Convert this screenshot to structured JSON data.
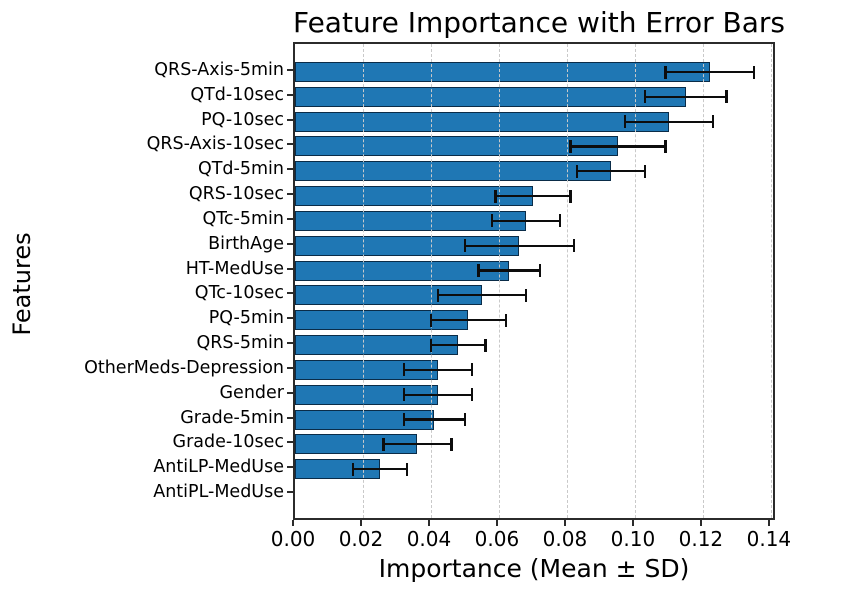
{
  "chart_data": {
    "type": "bar",
    "orientation": "horizontal",
    "title": "Feature Importance with Error Bars",
    "xlabel": "Importance (Mean ± SD)",
    "ylabel": "Features",
    "categories": [
      "QRS-Axis-5min",
      "QTd-10sec",
      "PQ-10sec",
      "QRS-Axis-10sec",
      "QTd-5min",
      "QRS-10sec",
      "QTc-5min",
      "BirthAge",
      "HT-MedUse",
      "QTc-10sec",
      "PQ-5min",
      "QRS-5min",
      "OtherMeds-Depression",
      "Gender",
      "Grade-5min",
      "Grade-10sec",
      "AntiLP-MedUse",
      "AntiPL-MedUse"
    ],
    "series": [
      {
        "name": "Importance (Mean)",
        "values": [
          0.122,
          0.115,
          0.11,
          0.095,
          0.093,
          0.07,
          0.068,
          0.066,
          0.063,
          0.055,
          0.051,
          0.048,
          0.042,
          0.042,
          0.041,
          0.036,
          0.025,
          0.0
        ]
      },
      {
        "name": "SD (error bar)",
        "values": [
          0.013,
          0.012,
          0.013,
          0.014,
          0.01,
          0.011,
          0.01,
          0.016,
          0.009,
          0.013,
          0.011,
          0.008,
          0.01,
          0.01,
          0.009,
          0.01,
          0.008,
          0.0
        ]
      }
    ],
    "xlim": [
      0.0,
      0.1418
    ],
    "xticks": [
      0.0,
      0.02,
      0.04,
      0.06,
      0.08,
      0.1,
      0.12,
      0.14
    ],
    "xtick_labels": [
      "0.00",
      "0.02",
      "0.04",
      "0.06",
      "0.08",
      "0.10",
      "0.12",
      "0.14"
    ],
    "grid": "vertical-dashed",
    "legend": "none",
    "bar_color": "#1f77b4",
    "bar_edge_color": "#0a1f33",
    "error_color": "#0d0d0d",
    "grid_color": "#c9c9c9",
    "spine_color": "#2b2b2b"
  }
}
